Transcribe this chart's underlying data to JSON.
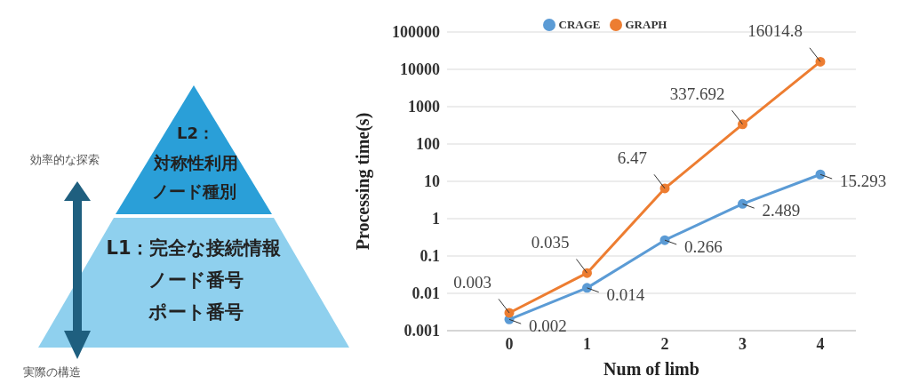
{
  "chart_data": [
    {
      "type": "other",
      "annotations": [
        "効率的な探索",
        "実際の構造",
        "L2：",
        "対称性利用",
        "ノード種別",
        "L1：完全な接続情報",
        "ノード番号",
        "ポート番号"
      ]
    },
    {
      "type": "line",
      "xlabel": "Num of limb",
      "ylabel": "Processing time(s)",
      "categories": [
        "0",
        "1",
        "2",
        "3",
        "4"
      ],
      "series": [
        {
          "name": "CRAGE",
          "color": "#5b9bd5",
          "values": [
            0.002,
            0.014,
            0.266,
            2.489,
            15.293
          ]
        },
        {
          "name": "GRAPH",
          "color": "#ed7d31",
          "values": [
            0.003,
            0.035,
            6.47,
            337.692,
            16014.8
          ]
        }
      ],
      "log": true,
      "ylim": [
        0.001,
        100000
      ],
      "yticks": [
        0.001,
        0.01,
        0.1,
        1,
        10,
        100,
        1000,
        10000,
        100000
      ],
      "grid": "y",
      "legend": "top",
      "marker": "circle",
      "line_style": "solid",
      "data_labels": true
    }
  ]
}
